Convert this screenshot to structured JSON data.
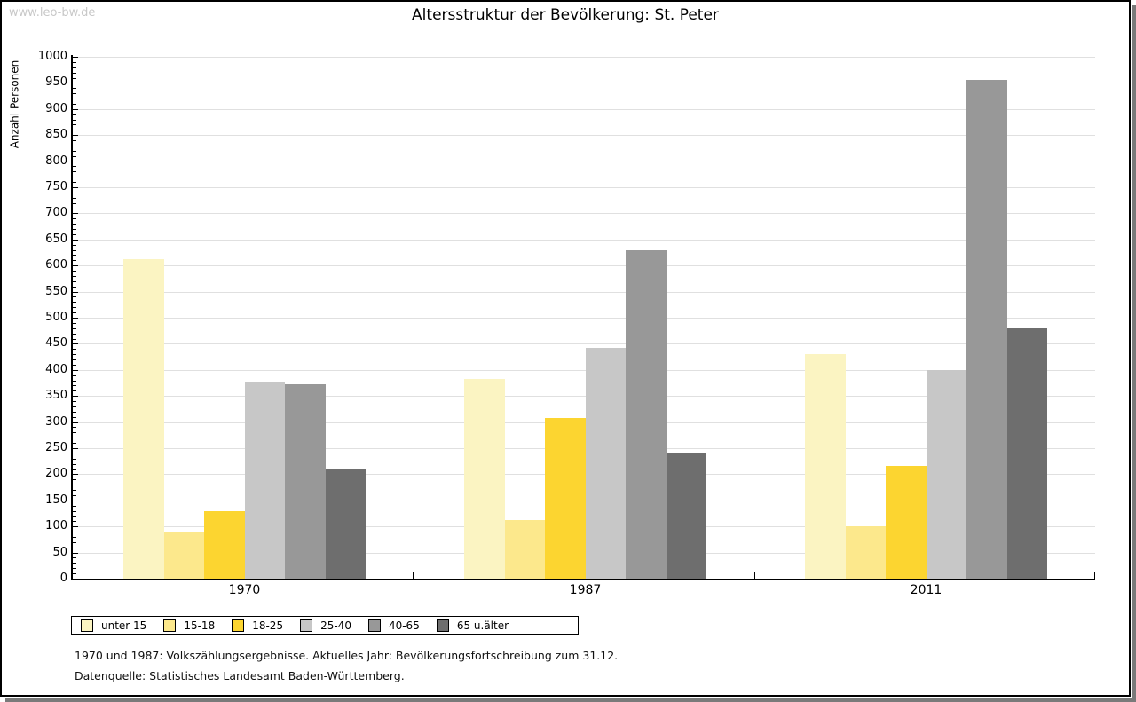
{
  "watermark": "www.leo-bw.de",
  "title": "Altersstruktur der Bevölkerung: St. Peter",
  "chart_data": {
    "type": "bar",
    "title": "Altersstruktur der Bevölkerung: St. Peter",
    "categories": [
      "1970",
      "1987",
      "2011"
    ],
    "series": [
      {
        "name": "unter 15",
        "color": "#fbf4c2",
        "values": [
          613,
          383,
          430
        ]
      },
      {
        "name": "15-18",
        "color": "#fce88c",
        "values": [
          90,
          112,
          100
        ]
      },
      {
        "name": "18-25",
        "color": "#fcd530",
        "values": [
          130,
          307,
          216
        ]
      },
      {
        "name": "25-40",
        "color": "#c7c7c7",
        "values": [
          377,
          443,
          399
        ]
      },
      {
        "name": "40-65",
        "color": "#989898",
        "values": [
          373,
          629,
          956
        ]
      },
      {
        "name": "65 u.älter",
        "color": "#6e6e6e",
        "values": [
          210,
          241,
          480
        ]
      }
    ],
    "xlabel": "",
    "ylabel": "Anzahl Personen",
    "ylim": [
      0,
      1000
    ],
    "ytick_step": 50,
    "ytick_minor_step": 10,
    "grid": true,
    "legend_position": "bottom",
    "gridline_color": "#e0e0e0"
  },
  "footer": {
    "line1": "1970 und 1987: Volkszählungsergebnisse. Aktuelles Jahr: Bevölkerungsfortschreibung zum 31.12.",
    "line2": "Datenquelle: Statistisches Landesamt Baden-Württemberg."
  }
}
